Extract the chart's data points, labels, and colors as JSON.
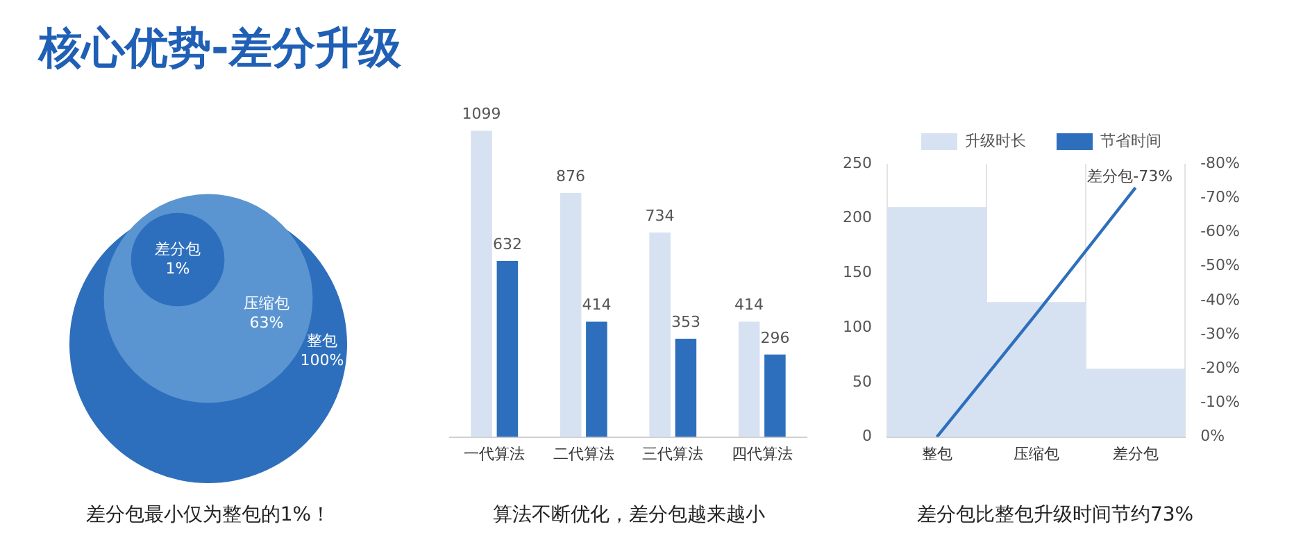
{
  "chart_data": [
    {
      "type": "other",
      "title": "核心优势-差分升级",
      "categories": [
        "整包",
        "压缩包",
        "差分包"
      ],
      "values": [
        100,
        63,
        1
      ],
      "value_labels": [
        "100%",
        "63%",
        "1%"
      ],
      "colors": [
        "#2e6fbd",
        "#5b95d1",
        "#2e6fbd"
      ],
      "annotations": [
        "差分包最小仅为整包的1%！"
      ]
    },
    {
      "type": "bar",
      "categories": [
        "一代算法",
        "二代算法",
        "三代算法",
        "四代算法"
      ],
      "series": [
        {
          "color": "#d6e2f1",
          "values": [
            1099,
            876,
            734,
            414
          ]
        },
        {
          "color": "#2e6fbd",
          "values": [
            632,
            414,
            353,
            296
          ]
        }
      ],
      "data_labels": true,
      "grid": false,
      "legend": false,
      "annotations": [
        "算法不断优化，差分包越来越小"
      ]
    },
    {
      "type": "bar",
      "categories": [
        "整包",
        "压缩包",
        "差分包"
      ],
      "series": [
        {
          "name": "升级时长",
          "type": "bar",
          "color": "#d6e2f1",
          "values": [
            210,
            123,
            62
          ]
        },
        {
          "name": "节省时间",
          "type": "line",
          "axis": "y2",
          "color": "#2e6fbd",
          "values": [
            0,
            -36,
            -73
          ]
        }
      ],
      "ylim": [
        0,
        250
      ],
      "yticks": [
        0,
        50,
        100,
        150,
        200,
        250
      ],
      "y2lim": [
        0,
        -80
      ],
      "y2ticks": [
        {
          "value": 0,
          "label": "0%"
        },
        {
          "value": -10,
          "label": "-10%"
        },
        {
          "value": -20,
          "label": "-20%"
        },
        {
          "value": -30,
          "label": "-30%"
        },
        {
          "value": -40,
          "label": "-40%"
        },
        {
          "value": -50,
          "label": "-50%"
        },
        {
          "value": -60,
          "label": "-60%"
        },
        {
          "value": -70,
          "label": "-70%"
        },
        {
          "value": -80,
          "label": "-80%"
        }
      ],
      "grid": "x",
      "legend": "top",
      "marker": "none",
      "line_style": "solid",
      "annotations": [
        "差分包-73%",
        "差分包比整包升级时间节约73%"
      ]
    }
  ]
}
